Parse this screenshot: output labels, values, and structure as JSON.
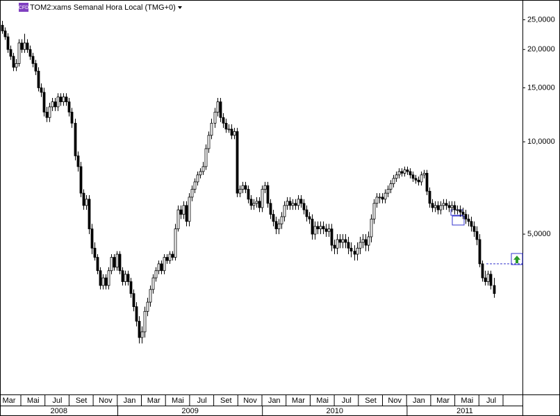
{
  "chart_data": {
    "type": "candlestick",
    "badge": "CFD",
    "title": "TOM2:xams Semanal Hora Local (TMG+0)",
    "log_scale": true,
    "ylim": [
      1.5,
      29
    ],
    "yticks": [
      {
        "value": 25,
        "label": "25,0000"
      },
      {
        "value": 20,
        "label": "20,0000"
      },
      {
        "value": 15,
        "label": "15,0000"
      },
      {
        "value": 10,
        "label": "10,0000"
      },
      {
        "value": 5,
        "label": "5,0000"
      }
    ],
    "up_color": "#ffffff",
    "down_color": "#000000",
    "alert_level": 4.0,
    "alert_color": "#3333cc",
    "months": [
      "Mar",
      "Mai",
      "Jul",
      "Set",
      "Nov",
      "Jan",
      "Mar",
      "Mai",
      "Jul",
      "Set",
      "Nov",
      "Jan",
      "Mar",
      "Mai",
      "Jul",
      "Set",
      "Nov",
      "Jan",
      "Mar",
      "Mai",
      "Jul"
    ],
    "years": [
      "2008",
      "2009",
      "2010",
      "2011"
    ],
    "candles": [
      [
        24,
        24.8,
        22.5,
        23
      ],
      [
        23,
        23.6,
        21.5,
        22
      ],
      [
        22,
        22.6,
        19.5,
        20
      ],
      [
        20,
        20.6,
        18.5,
        19
      ],
      [
        19,
        19.5,
        17,
        17.5
      ],
      [
        17.5,
        18.6,
        17,
        18
      ],
      [
        18,
        21.6,
        17.6,
        21
      ],
      [
        21,
        21.6,
        19.5,
        20
      ],
      [
        20,
        22.5,
        19.5,
        21
      ],
      [
        21,
        21.6,
        19.5,
        20
      ],
      [
        20,
        20.6,
        18.5,
        19
      ],
      [
        19,
        19.5,
        17.5,
        18
      ],
      [
        18,
        18.5,
        16.5,
        17
      ],
      [
        17,
        17.5,
        14.6,
        15
      ],
      [
        15,
        15.5,
        14,
        14.5
      ],
      [
        14.5,
        15,
        12.1,
        12.5
      ],
      [
        12.5,
        13,
        11.6,
        12
      ],
      [
        12,
        13.4,
        11.6,
        13
      ],
      [
        13,
        13.9,
        12.6,
        13.5
      ],
      [
        13.5,
        13.9,
        12.6,
        13
      ],
      [
        13,
        14.4,
        12.6,
        14
      ],
      [
        14,
        14.4,
        13.1,
        13.5
      ],
      [
        13.5,
        14.4,
        13.1,
        14
      ],
      [
        14,
        14.4,
        13.1,
        13.5
      ],
      [
        13.5,
        13.9,
        12.1,
        12.5
      ],
      [
        12.5,
        12.9,
        11.1,
        11.5
      ],
      [
        11.5,
        11.9,
        8.7,
        9
      ],
      [
        9,
        9.3,
        8,
        8.3
      ],
      [
        8.3,
        8.6,
        6.6,
        6.8
      ],
      [
        6.8,
        7,
        6,
        6.2
      ],
      [
        6.2,
        6.7,
        6,
        6.5
      ],
      [
        6.5,
        6.7,
        5,
        5.2
      ],
      [
        5.2,
        5.4,
        4.3,
        4.5
      ],
      [
        4.5,
        4.7,
        4.1,
        4.2
      ],
      [
        4.2,
        4.3,
        3.7,
        3.8
      ],
      [
        3.8,
        3.9,
        3.3,
        3.4
      ],
      [
        3.4,
        3.7,
        3.3,
        3.6
      ],
      [
        3.6,
        3.7,
        3.3,
        3.4
      ],
      [
        3.4,
        3.9,
        3.3,
        3.8
      ],
      [
        3.8,
        4.3,
        3.7,
        4.2
      ],
      [
        4.2,
        4.3,
        3.8,
        3.9
      ],
      [
        3.9,
        4.4,
        3.8,
        4.3
      ],
      [
        4.3,
        4.4,
        3.7,
        3.8
      ],
      [
        3.8,
        3.9,
        3.4,
        3.5
      ],
      [
        3.5,
        3.8,
        3.4,
        3.7
      ],
      [
        3.7,
        3.8,
        3.4,
        3.5
      ],
      [
        3.5,
        3.6,
        3.1,
        3.2
      ],
      [
        3.2,
        3.3,
        2.8,
        2.9
      ],
      [
        2.9,
        3,
        2.5,
        2.6
      ],
      [
        2.6,
        2.7,
        2.2,
        2.3
      ],
      [
        2.3,
        2.5,
        2.2,
        2.4
      ],
      [
        2.4,
        2.9,
        2.3,
        2.8
      ],
      [
        2.8,
        3.1,
        2.7,
        3
      ],
      [
        3,
        3.4,
        2.9,
        3.3
      ],
      [
        3.3,
        3.7,
        3.2,
        3.6
      ],
      [
        3.6,
        3.9,
        3.5,
        3.8
      ],
      [
        3.8,
        4.1,
        3.7,
        4
      ],
      [
        4,
        4.1,
        3.7,
        3.8
      ],
      [
        3.8,
        4.3,
        3.7,
        4.2
      ],
      [
        4.2,
        4.3,
        4,
        4.1
      ],
      [
        4.1,
        4.4,
        4,
        4.3
      ],
      [
        4.3,
        4.4,
        4.1,
        4.2
      ],
      [
        4.2,
        5.4,
        4.1,
        5.2
      ],
      [
        5.2,
        6.2,
        5.1,
        6
      ],
      [
        6,
        6.2,
        5.6,
        5.8
      ],
      [
        5.8,
        6.4,
        5.6,
        6.2
      ],
      [
        6.2,
        6.4,
        5.3,
        5.5
      ],
      [
        5.5,
        6.8,
        5.3,
        6.6
      ],
      [
        6.6,
        7.2,
        6.4,
        7
      ],
      [
        7,
        7.6,
        6.8,
        7.4
      ],
      [
        7.4,
        8,
        7.2,
        7.8
      ],
      [
        7.8,
        8.2,
        7.6,
        8
      ],
      [
        8,
        8.6,
        7.8,
        8.3
      ],
      [
        8.3,
        9.8,
        8.1,
        9.5
      ],
      [
        9.5,
        10.8,
        9.2,
        10.5
      ],
      [
        10.5,
        11.9,
        10.2,
        11.5
      ],
      [
        11.5,
        12.9,
        11.1,
        12.5
      ],
      [
        12.5,
        13.9,
        12.1,
        13.5
      ],
      [
        13.5,
        13.9,
        11.6,
        12
      ],
      [
        12,
        12.4,
        11.1,
        11.5
      ],
      [
        11.5,
        11.9,
        10.7,
        11
      ],
      [
        11,
        11.4,
        10.7,
        11
      ],
      [
        11,
        11.4,
        10.2,
        10.5
      ],
      [
        10.5,
        11.1,
        10.2,
        10.8
      ],
      [
        10.8,
        11.1,
        6.6,
        6.8
      ],
      [
        6.8,
        7.2,
        6.6,
        7
      ],
      [
        7,
        7.4,
        6.8,
        7.2
      ],
      [
        7.2,
        7.4,
        6.8,
        7
      ],
      [
        7,
        7.2,
        6.3,
        6.5
      ],
      [
        6.5,
        6.7,
        6,
        6.2
      ],
      [
        6.2,
        6.5,
        6,
        6.3
      ],
      [
        6.3,
        6.6,
        6.1,
        6.4
      ],
      [
        6.4,
        6.6,
        5.9,
        6.1
      ],
      [
        6.1,
        7.2,
        5.9,
        7
      ],
      [
        7,
        7.4,
        6.8,
        7.2
      ],
      [
        7.2,
        7.4,
        6.1,
        6.3
      ],
      [
        6.3,
        6.5,
        5.6,
        5.8
      ],
      [
        5.8,
        6,
        5.3,
        5.5
      ],
      [
        5.5,
        5.7,
        5,
        5.2
      ],
      [
        5.2,
        5.6,
        5,
        5.4
      ],
      [
        5.4,
        5.9,
        5.2,
        5.7
      ],
      [
        5.7,
        6.4,
        5.5,
        6.2
      ],
      [
        6.2,
        6.6,
        6,
        6.4
      ],
      [
        6.4,
        6.6,
        6,
        6.2
      ],
      [
        6.2,
        6.5,
        6,
        6.3
      ],
      [
        6.3,
        6.5,
        6,
        6.2
      ],
      [
        6.2,
        6.7,
        6,
        6.5
      ],
      [
        6.5,
        6.7,
        6.1,
        6.3
      ],
      [
        6.3,
        6.5,
        5.8,
        6
      ],
      [
        6,
        6.2,
        5.5,
        5.7
      ],
      [
        5.7,
        5.9,
        5.4,
        5.6
      ],
      [
        5.6,
        5.8,
        4.8,
        5
      ],
      [
        5,
        5.5,
        4.8,
        5.3
      ],
      [
        5.3,
        5.5,
        5,
        5.2
      ],
      [
        5.2,
        5.5,
        5,
        5.3
      ],
      [
        5.3,
        5.5,
        5,
        5.2
      ],
      [
        5.2,
        5.4,
        4.9,
        5.1
      ],
      [
        5.1,
        5.4,
        4.9,
        5.2
      ],
      [
        5.2,
        5.4,
        4.4,
        4.6
      ],
      [
        4.6,
        4.8,
        4.3,
        4.5
      ],
      [
        4.5,
        5,
        4.3,
        4.8
      ],
      [
        4.8,
        5,
        4.5,
        4.7
      ],
      [
        4.7,
        5,
        4.5,
        4.8
      ],
      [
        4.8,
        5,
        4.5,
        4.7
      ],
      [
        4.7,
        4.9,
        4.3,
        4.5
      ],
      [
        4.5,
        4.7,
        4.2,
        4.4
      ],
      [
        4.4,
        4.6,
        4.1,
        4.3
      ],
      [
        4.3,
        4.7,
        4.1,
        4.5
      ],
      [
        4.5,
        4.9,
        4.3,
        4.7
      ],
      [
        4.7,
        5,
        4.5,
        4.8
      ],
      [
        4.8,
        5,
        4.4,
        4.6
      ],
      [
        4.6,
        5.1,
        4.4,
        4.9
      ],
      [
        4.9,
        5.8,
        4.7,
        5.6
      ],
      [
        5.6,
        6.5,
        5.4,
        6.3
      ],
      [
        6.3,
        6.8,
        6.1,
        6.6
      ],
      [
        6.6,
        6.8,
        6.3,
        6.6
      ],
      [
        6.6,
        6.8,
        6.3,
        6.5
      ],
      [
        6.5,
        7,
        6.3,
        6.8
      ],
      [
        6.8,
        7.2,
        6.6,
        7
      ],
      [
        7,
        7.5,
        6.8,
        7.3
      ],
      [
        7.3,
        7.8,
        7.1,
        7.6
      ],
      [
        7.6,
        8,
        7.4,
        7.8
      ],
      [
        7.8,
        8.2,
        7.6,
        8
      ],
      [
        8,
        8.2,
        7.7,
        7.9
      ],
      [
        7.9,
        8.3,
        7.7,
        8.1
      ],
      [
        8.1,
        8.3,
        7.8,
        8
      ],
      [
        8,
        8.2,
        7.6,
        7.8
      ],
      [
        7.8,
        8,
        7.4,
        7.6
      ],
      [
        7.6,
        7.8,
        7.3,
        7.5
      ],
      [
        7.5,
        7.7,
        7.2,
        7.4
      ],
      [
        7.4,
        8,
        7.2,
        7.8
      ],
      [
        7.8,
        8.1,
        7.6,
        7.9
      ],
      [
        7.9,
        8.1,
        6.7,
        6.9
      ],
      [
        6.9,
        7.1,
        6.1,
        6.3
      ],
      [
        6.3,
        6.5,
        5.9,
        6.1
      ],
      [
        6.1,
        6.4,
        5.9,
        6.2
      ],
      [
        6.2,
        6.4,
        5.8,
        6
      ],
      [
        6,
        6.4,
        5.8,
        6.2
      ],
      [
        6.2,
        6.5,
        6,
        6.3
      ],
      [
        6.3,
        6.5,
        6,
        6.2
      ],
      [
        6.2,
        6.4,
        5.9,
        6.1
      ],
      [
        6.1,
        6.4,
        5.9,
        6.2
      ],
      [
        6.2,
        6.4,
        5.8,
        6
      ],
      [
        6,
        6.2,
        5.8,
        6
      ],
      [
        6,
        6.2,
        5.7,
        5.9
      ],
      [
        5.9,
        6.1,
        5.6,
        5.8
      ],
      [
        5.8,
        6,
        5.4,
        5.6
      ],
      [
        5.6,
        5.8,
        5.3,
        5.5
      ],
      [
        5.5,
        5.7,
        5.1,
        5.3
      ],
      [
        5.3,
        5.5,
        4.9,
        5.1
      ],
      [
        5.1,
        5.3,
        4.6,
        4.8
      ],
      [
        4.8,
        5,
        3.9,
        4
      ],
      [
        4,
        4.1,
        3.5,
        3.6
      ],
      [
        3.6,
        3.8,
        3.4,
        3.5
      ],
      [
        3.5,
        3.8,
        3.4,
        3.7
      ],
      [
        3.7,
        3.8,
        3.3,
        3.4
      ],
      [
        3.4,
        3.6,
        3.1,
        3.2
      ]
    ]
  }
}
